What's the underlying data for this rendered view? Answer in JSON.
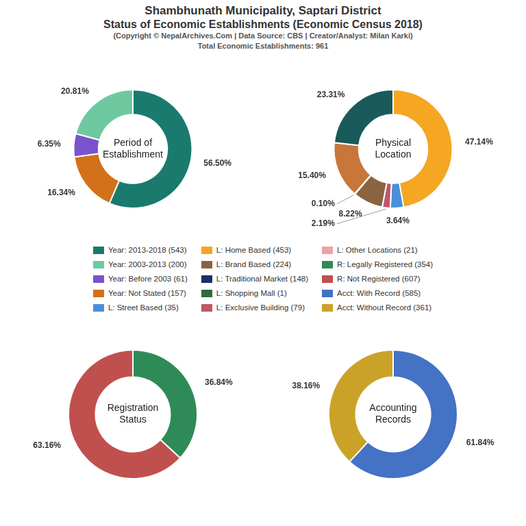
{
  "title": [
    "Shambhunath Municipality, Saptari District",
    "Status of Economic Establishments (Economic Census 2018)"
  ],
  "subtitle": [
    "(Copyright © NepalArchives.Com | Data Source: CBS | Creator/Analyst: Milan Karki)",
    "Total Economic Establishments: 961"
  ],
  "legend_items": [
    {
      "name": "Year: 2013-2018 (543)",
      "color": "#1A7A6E"
    },
    {
      "name": "Year: 2003-2013 (200)",
      "color": "#6EC9A0"
    },
    {
      "name": "Year: Before 2003 (61)",
      "color": "#7B52CC"
    },
    {
      "name": "Year: Not Stated (157)",
      "color": "#D2711A"
    },
    {
      "name": "L: Street Based (35)",
      "color": "#4A90D9"
    },
    {
      "name": "L: Home Based (453)",
      "color": "#F5A623"
    },
    {
      "name": "L: Brand Based (224)",
      "color": "#8B6340"
    },
    {
      "name": "L: Traditional Market (148)",
      "color": "#1A2E6B"
    },
    {
      "name": "L: Shopping Mall (1)",
      "color": "#2E6B3E"
    },
    {
      "name": "L: Exclusive Building (79)",
      "color": "#C0566B"
    },
    {
      "name": "L: Other Locations (21)",
      "color": "#F0A0A8"
    },
    {
      "name": "R: Legally Registered (354)",
      "color": "#2E8B57"
    },
    {
      "name": "R: Not Registered (607)",
      "color": "#C0504D"
    },
    {
      "name": "Acct: With Record (585)",
      "color": "#4472C4"
    },
    {
      "name": "Acct: Without Record (361)",
      "color": "#CBA228"
    }
  ],
  "chart_data": [
    {
      "type": "doughnut",
      "title": "Period of\nEstablishment",
      "values": [
        56.5,
        16.34,
        6.35,
        20.81
      ],
      "value_labels": [
        "56.50%",
        "16.34%",
        "6.35%",
        "20.81%"
      ],
      "colors": [
        "#1A7A6E",
        "#D2711A",
        "#7B52CC",
        "#6EC9A0"
      ],
      "data_labels": true
    },
    {
      "type": "doughnut",
      "title": "Physical\nLocation",
      "values": [
        47.14,
        3.64,
        2.19,
        8.22,
        0.1,
        15.4,
        23.31
      ],
      "value_labels": [
        "47.14%",
        "3.64%",
        "2.19%",
        "8.22%",
        "0.10%",
        "15.40%",
        "23.31%"
      ],
      "colors": [
        "#F5A623",
        "#4A90D9",
        "#C0566B",
        "#8B6340",
        "#1A2E6B",
        "#C8763A",
        "#1A5A5A"
      ],
      "data_labels": true
    },
    {
      "type": "doughnut",
      "title": "Registration\nStatus",
      "values": [
        36.84,
        63.16
      ],
      "value_labels": [
        "36.84%",
        "63.16%"
      ],
      "colors": [
        "#2E8B57",
        "#C0504D"
      ],
      "data_labels": true
    },
    {
      "type": "doughnut",
      "title": "Accounting\nRecords",
      "values": [
        61.84,
        38.16
      ],
      "value_labels": [
        "61.84%",
        "38.16%"
      ],
      "colors": [
        "#4472C4",
        "#CBA228"
      ],
      "data_labels": true
    }
  ]
}
